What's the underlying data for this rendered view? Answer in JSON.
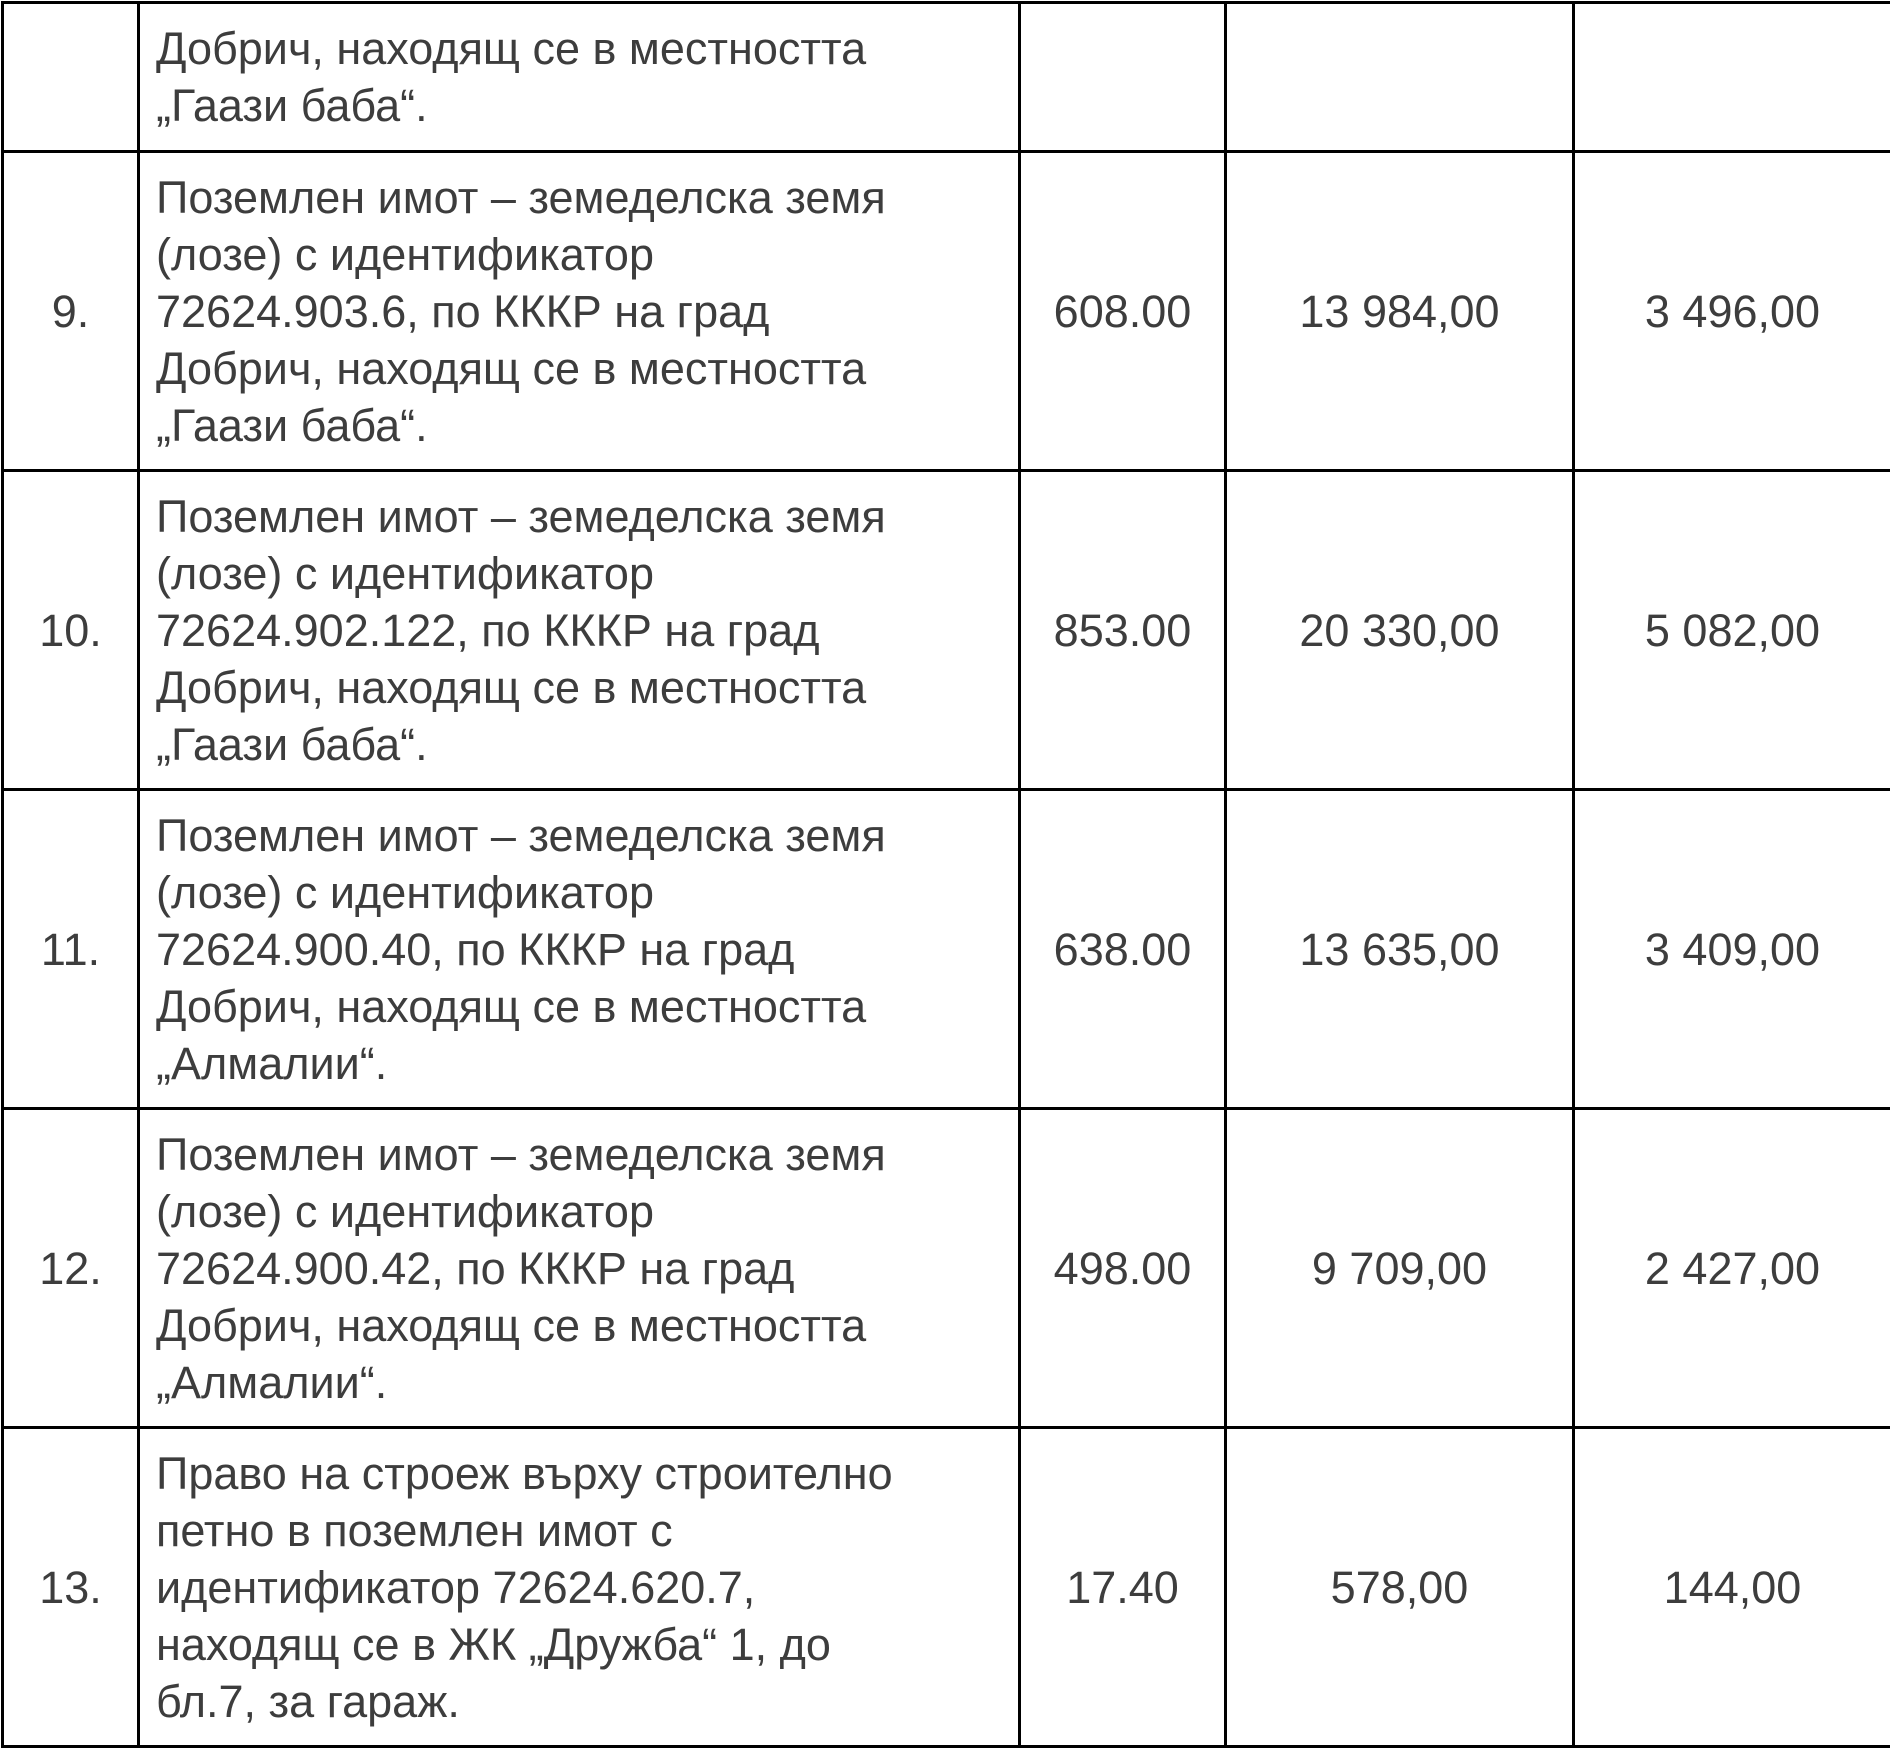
{
  "table": {
    "rows": [
      {
        "no": "",
        "description": [
          "Добрич, находящ се в местността",
          "„Гаази баба“."
        ],
        "area": "",
        "value1": "",
        "value2": ""
      },
      {
        "no": "9.",
        "description": [
          "Поземлен имот – земеделска земя",
          "(лозе) с идентификатор",
          "72624.903.6, по КККР на град",
          "Добрич, находящ се в местността",
          "„Гаази баба“."
        ],
        "area": "608.00",
        "value1": "13 984,00",
        "value2": "3 496,00"
      },
      {
        "no": "10.",
        "description": [
          "Поземлен имот – земеделска земя",
          "(лозе) с идентификатор",
          "72624.902.122, по КККР на град",
          "Добрич, находящ се в местността",
          "„Гаази баба“."
        ],
        "area": "853.00",
        "value1": "20 330,00",
        "value2": "5 082,00"
      },
      {
        "no": "11.",
        "description": [
          "Поземлен имот – земеделска земя",
          "(лозе) с идентификатор",
          "72624.900.40, по КККР на град",
          "Добрич, находящ се в местността",
          "„Алмалии“."
        ],
        "area": "638.00",
        "value1": "13 635,00",
        "value2": "3 409,00"
      },
      {
        "no": "12.",
        "description": [
          "Поземлен имот – земеделска земя",
          "(лозе) с идентификатор",
          "72624.900.42, по КККР на град",
          "Добрич, находящ се в местността",
          "„Алмалии“."
        ],
        "area": "498.00",
        "value1": "9 709,00",
        "value2": "2 427,00"
      },
      {
        "no": "13.",
        "description": [
          "Право на строеж върху строително",
          "петно в поземлен имот с",
          "идентификатор 72624.620.7,",
          "находящ се в ЖК „Дружба“ 1, до",
          "бл.7, за гараж."
        ],
        "area": "17.40",
        "value1": "578,00",
        "value2": "144,00"
      }
    ]
  }
}
